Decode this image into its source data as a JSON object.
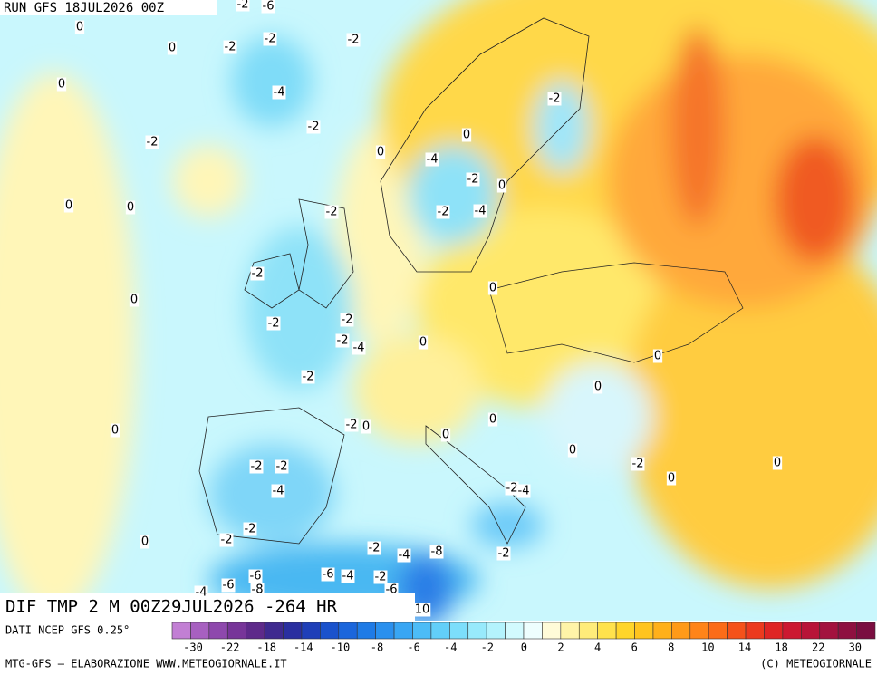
{
  "header": {
    "run": "RUN GFS 18JUL2026 00Z"
  },
  "title": "DIF TMP 2 M 00Z29JUL2026 -264 HR",
  "source": "DATI NCEP GFS 0.25°",
  "footer": {
    "left": "MTG-GFS — ELABORAZIONE WWW.METEOGIORNALE.IT",
    "right": "(C) METEOGIORNALE"
  },
  "colorbar": {
    "colors": [
      "#c27fd4",
      "#a760c0",
      "#8e48ad",
      "#773599",
      "#5e2a8a",
      "#3f2a8f",
      "#2a2fa0",
      "#1f3fb8",
      "#1a52cc",
      "#1b66dc",
      "#1f7be6",
      "#2a90ee",
      "#38a6f4",
      "#4cbcf7",
      "#62cff9",
      "#7cdefb",
      "#98eafc",
      "#b4f3fd",
      "#d2fafe",
      "#eefefe",
      "#fffbd8",
      "#fff4a8",
      "#ffec7a",
      "#ffe24c",
      "#ffd52a",
      "#ffc41f",
      "#ffb01a",
      "#ff9a18",
      "#ff8418",
      "#fb6c18",
      "#f5521a",
      "#ec3a1e",
      "#df2524",
      "#cc1830",
      "#b81438",
      "#a3123e",
      "#8e1040",
      "#7a0e40"
    ],
    "labels": [
      -30,
      -22,
      -18,
      -14,
      -10,
      -8,
      -6,
      -4,
      -2,
      0,
      2,
      4,
      6,
      8,
      10,
      14,
      18,
      22,
      30
    ]
  },
  "map_labels": [
    -2,
    -6,
    0,
    0,
    -2,
    -2,
    -2,
    0,
    -4,
    -2,
    -2,
    0,
    0,
    -2,
    -4,
    -2,
    0,
    0,
    0,
    -2,
    -2,
    -4,
    -2,
    0,
    0,
    -2,
    -2,
    -2,
    -4,
    0,
    -2,
    0,
    0,
    0,
    -2,
    0,
    0,
    0,
    0,
    -2,
    -2,
    -2,
    0,
    0,
    -4,
    -2,
    -4,
    -2,
    -2,
    0,
    -2,
    -4,
    -8,
    -2,
    -6,
    -6,
    -4,
    -2,
    -6,
    -4,
    -8,
    -6,
    10
  ]
}
